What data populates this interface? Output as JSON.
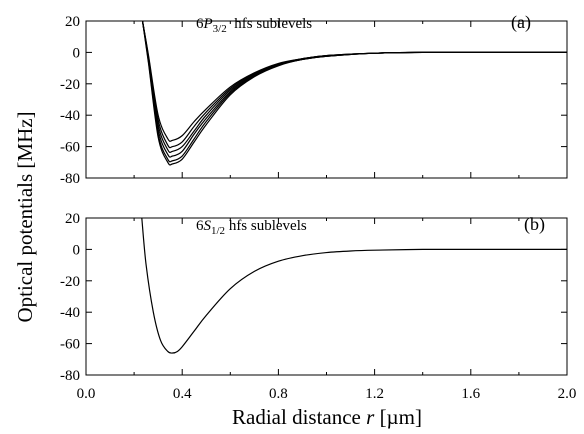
{
  "chart_data": {
    "type": "line",
    "ylabel": "Optical potentials [MHz]",
    "xlabel_main": "Radial distance ",
    "xlabel_var": "r",
    "xlabel_unit": " [µm]",
    "xlim": [
      0.0,
      2.0
    ],
    "x_ticks": [
      "0.0",
      "0.4",
      "0.8",
      "1.2",
      "1.6",
      "2.0"
    ],
    "panels": [
      {
        "id": "a",
        "panel_label": "(a)",
        "annotation": {
          "prefix": "6",
          "italic": "P",
          "subscript": "3/2",
          "suffix": "  hfs sublevels"
        },
        "ylim": [
          -80,
          20
        ],
        "y_ticks": [
          "20",
          "0",
          "-20",
          "-40",
          "-60",
          "-80"
        ],
        "series": [
          {
            "x": [
              0.235,
              0.26,
              0.3,
              0.34,
              0.36,
              0.4,
              0.45,
              0.5,
              0.6,
              0.7,
              0.8,
              0.9,
              1.0,
              1.2,
              1.4,
              1.6,
              2.0
            ],
            "y": [
              20,
              -2,
              -40,
              -55,
              -56,
              -53,
              -44,
              -36,
              -22,
              -13,
              -7,
              -4,
              -2,
              -0.5,
              0,
              0,
              0
            ]
          },
          {
            "x": [
              0.235,
              0.26,
              0.3,
              0.34,
              0.36,
              0.4,
              0.45,
              0.5,
              0.6,
              0.7,
              0.8,
              0.9,
              1.0,
              1.2,
              1.4,
              1.6,
              2.0
            ],
            "y": [
              20,
              -3,
              -43,
              -59,
              -60,
              -57,
              -47,
              -38,
              -23,
              -13.5,
              -7.5,
              -4,
              -2,
              -0.5,
              0,
              0,
              0
            ]
          },
          {
            "x": [
              0.235,
              0.26,
              0.3,
              0.34,
              0.36,
              0.4,
              0.45,
              0.5,
              0.6,
              0.7,
              0.8,
              0.9,
              1.0,
              1.2,
              1.4,
              1.6,
              2.0
            ],
            "y": [
              20,
              -4,
              -46,
              -62,
              -63,
              -60,
              -50,
              -40,
              -24,
              -14,
              -7.5,
              -4,
              -2,
              -0.5,
              0,
              0,
              0
            ]
          },
          {
            "x": [
              0.235,
              0.26,
              0.3,
              0.34,
              0.36,
              0.4,
              0.45,
              0.5,
              0.6,
              0.7,
              0.8,
              0.9,
              1.0,
              1.2,
              1.4,
              1.6,
              2.0
            ],
            "y": [
              20,
              -5,
              -49,
              -65,
              -66,
              -63,
              -52,
              -42,
              -25,
              -14.5,
              -8,
              -4.5,
              -2.5,
              -0.5,
              0,
              0,
              0
            ]
          },
          {
            "x": [
              0.235,
              0.26,
              0.3,
              0.34,
              0.36,
              0.4,
              0.45,
              0.5,
              0.6,
              0.7,
              0.8,
              0.9,
              1.0,
              1.2,
              1.4,
              1.6,
              2.0
            ],
            "y": [
              20,
              -6,
              -52,
              -68,
              -69,
              -66,
              -55,
              -44,
              -26,
              -15,
              -8,
              -4.5,
              -2.5,
              -0.5,
              0,
              0,
              0
            ]
          },
          {
            "x": [
              0.235,
              0.26,
              0.3,
              0.34,
              0.36,
              0.4,
              0.45,
              0.5,
              0.6,
              0.7,
              0.8,
              0.9,
              1.0,
              1.2,
              1.4,
              1.6,
              2.0
            ],
            "y": [
              20,
              -7,
              -54,
              -70,
              -71,
              -68,
              -57,
              -46,
              -27,
              -15.5,
              -8.5,
              -4.5,
              -2.5,
              -0.5,
              0,
              0,
              0
            ]
          }
        ]
      },
      {
        "id": "b",
        "panel_label": "(b)",
        "annotation": {
          "prefix": "6",
          "italic": "S",
          "subscript": "1/2",
          "suffix": " hfs sublevels"
        },
        "ylim": [
          -80,
          20
        ],
        "y_ticks": [
          "20",
          "0",
          "-20",
          "-40",
          "-60",
          "-80"
        ],
        "series": [
          {
            "x": [
              0.232,
              0.25,
              0.28,
              0.31,
              0.34,
              0.36,
              0.38,
              0.4,
              0.45,
              0.5,
              0.6,
              0.7,
              0.8,
              0.9,
              1.0,
              1.1,
              1.2,
              1.4,
              1.6,
              2.0
            ],
            "y": [
              20,
              -10,
              -40,
              -58,
              -65,
              -66,
              -65,
              -62,
              -52,
              -42,
              -25,
              -14,
              -7.5,
              -4,
              -2,
              -1,
              -0.5,
              0,
              0,
              0
            ]
          }
        ]
      }
    ]
  }
}
